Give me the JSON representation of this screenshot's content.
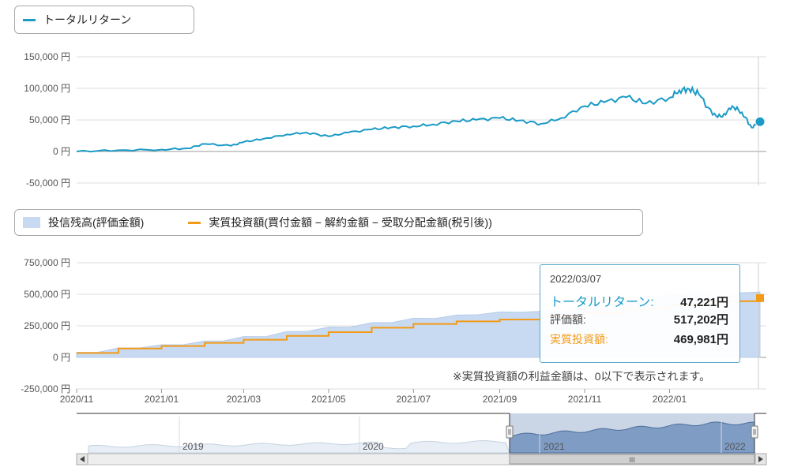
{
  "legend_top": {
    "items": [
      {
        "label": "トータルリターン",
        "color": "#1b9bc6"
      }
    ]
  },
  "legend_bottom": {
    "items": [
      {
        "label": "投信残高(評価金額)",
        "color": "#c8daf2"
      },
      {
        "label": "実質投資額(買付金額 − 解約金額 − 受取分配金額(税引後))",
        "color": "#f39a16"
      }
    ]
  },
  "tooltip": {
    "date": "2022/03/07",
    "rows": [
      {
        "label": "トータルリターン:",
        "value": "47,221円",
        "color": "#1b9bc6"
      },
      {
        "label": "評価額:",
        "value": "517,202円",
        "color": "#444444"
      },
      {
        "label": "実質投資額:",
        "value": "469,981円",
        "color": "#f39a16"
      }
    ]
  },
  "note": "※実質投資額の利益金額は、0以下で表示されます。",
  "navigator": {
    "year_labels": [
      "2019",
      "2020",
      "2021",
      "2022"
    ],
    "scroll_grip": "III"
  },
  "chart_data": [
    {
      "type": "line",
      "y_tick_labels": [
        "150,000 円",
        "100,000 円",
        "50,000 円",
        "0 円",
        "-50,000 円"
      ],
      "ylim": [
        -50000,
        150000
      ],
      "xlim": [
        "2020-11-01",
        "2022-03-07"
      ],
      "series": [
        {
          "name": "トータルリターン",
          "color": "#1b9bc6",
          "x": [
            "2020-11-01",
            "2020-12-01",
            "2021-01-01",
            "2021-01-20",
            "2021-02-01",
            "2021-02-20",
            "2021-03-01",
            "2021-03-15",
            "2021-04-01",
            "2021-04-15",
            "2021-05-01",
            "2021-05-15",
            "2021-06-01",
            "2021-06-15",
            "2021-07-01",
            "2021-07-15",
            "2021-08-01",
            "2021-08-15",
            "2021-09-01",
            "2021-09-15",
            "2021-10-01",
            "2021-10-15",
            "2021-11-01",
            "2021-11-15",
            "2021-12-01",
            "2021-12-15",
            "2022-01-01",
            "2022-01-08",
            "2022-01-15",
            "2022-01-22",
            "2022-02-01",
            "2022-02-08",
            "2022-02-15",
            "2022-02-22",
            "2022-03-01",
            "2022-03-07"
          ],
          "y": [
            0,
            2000,
            3000,
            5000,
            12000,
            9000,
            15000,
            20000,
            27000,
            30000,
            24000,
            30000,
            35000,
            38000,
            40000,
            43000,
            48000,
            50000,
            53000,
            49000,
            44000,
            53000,
            72000,
            78000,
            86000,
            76000,
            85000,
            97000,
            99000,
            91000,
            58000,
            55000,
            72000,
            62000,
            38000,
            47221
          ]
        }
      ]
    },
    {
      "type": "area",
      "y_tick_labels": [
        "750,000 円",
        "500,000 円",
        "250,000 円",
        "0 円",
        "-250,000 円"
      ],
      "x_tick_labels": [
        "2020/11",
        "2021/01",
        "2021/03",
        "2021/05",
        "2021/07",
        "2021/09",
        "2021/11",
        "2022/01"
      ],
      "ylim": [
        -250000,
        750000
      ],
      "xlim": [
        "2020-11-01",
        "2022-03-07"
      ],
      "series": [
        {
          "name": "投信残高(評価金額)",
          "color": "#c8daf2",
          "x": [
            "2020-11-01",
            "2020-12-01",
            "2021-01-01",
            "2021-02-01",
            "2021-03-01",
            "2021-04-01",
            "2021-05-01",
            "2021-06-01",
            "2021-07-01",
            "2021-08-01",
            "2021-09-01",
            "2021-10-01",
            "2021-11-01",
            "2021-12-01",
            "2022-01-01",
            "2022-01-20",
            "2022-02-01",
            "2022-02-20",
            "2022-03-07"
          ],
          "y": [
            40000,
            75000,
            100000,
            130000,
            165000,
            205000,
            240000,
            275000,
            310000,
            335000,
            360000,
            365000,
            405000,
            445000,
            500000,
            520000,
            480000,
            510000,
            517202
          ]
        },
        {
          "name": "実質投資額(買付金額 − 解約金額 − 受取分配金額(税引後))",
          "color": "#f39a16",
          "step": true,
          "x": [
            "2020-11-01",
            "2020-12-01",
            "2021-01-01",
            "2021-02-01",
            "2021-03-01",
            "2021-04-01",
            "2021-05-01",
            "2021-06-01",
            "2021-07-01",
            "2021-08-01",
            "2021-09-01",
            "2021-10-01",
            "2021-11-01",
            "2021-12-01",
            "2022-01-01",
            "2022-02-01",
            "2022-03-07"
          ],
          "y": [
            35000,
            70000,
            90000,
            115000,
            140000,
            170000,
            200000,
            235000,
            265000,
            285000,
            300000,
            320000,
            350000,
            385000,
            420000,
            445000,
            469981
          ]
        }
      ]
    }
  ]
}
